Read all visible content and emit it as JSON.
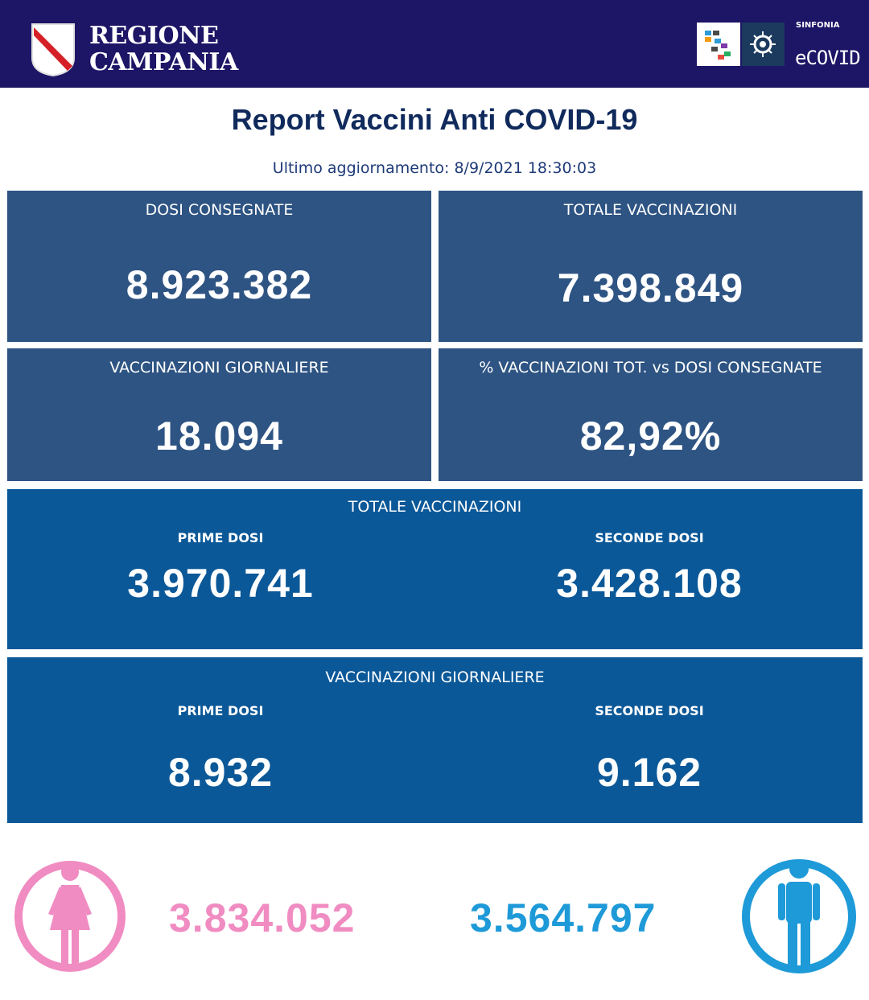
{
  "header": {
    "brand_line1": "REGIONE",
    "brand_line2": "CAMPANIA",
    "partner_small": "SINFONIA",
    "partner_name": "eCOVID",
    "colors": {
      "background": "#1d1566"
    }
  },
  "report": {
    "title": "Report Vaccini Anti COVID-19",
    "updated": "Ultimo aggiornamento: 8/9/2021  18:30:03"
  },
  "cards": {
    "dosi_consegnate": {
      "label": "DOSI  CONSEGNATE",
      "value": "8.923.382"
    },
    "totale_vaccinazioni": {
      "label": "TOTALE VACCINAZIONI",
      "value": "7.398.849"
    },
    "vaccinazioni_giornaliere": {
      "label": "VACCINAZIONI GIORNALIERE",
      "value": "18.094"
    },
    "percentuale": {
      "label": "% VACCINAZIONI TOT. vs DOSI CONSEGNATE",
      "value": "82,92%"
    }
  },
  "totale_split": {
    "label": "TOTALE VACCINAZIONI",
    "prime_label": "PRIME DOSI",
    "prime_value": "3.970.741",
    "seconde_label": "SECONDE DOSI",
    "seconde_value": "3.428.108"
  },
  "giornaliere_split": {
    "label": "VACCINAZIONI GIORNALIERE",
    "prime_label": "PRIME DOSI",
    "prime_value": "8.932",
    "seconde_label": "SECONDE DOSI",
    "seconde_value": "9.162"
  },
  "gender": {
    "female_value": "3.834.052",
    "female_icon": "female-icon",
    "female_color": "#f08cc2",
    "male_value": "3.564.797",
    "male_icon": "male-icon",
    "male_color": "#1e9ad8"
  }
}
